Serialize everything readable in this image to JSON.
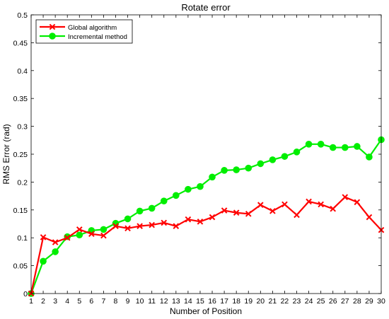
{
  "chart_data": {
    "type": "line",
    "title": "Rotate error",
    "xlabel": "Number of Position",
    "ylabel": "RMS Error (rad)",
    "xlim": [
      1,
      30
    ],
    "ylim": [
      0,
      0.5
    ],
    "x_ticks": [
      1,
      2,
      3,
      4,
      5,
      6,
      7,
      8,
      9,
      10,
      11,
      12,
      13,
      14,
      15,
      16,
      17,
      18,
      19,
      20,
      21,
      22,
      23,
      24,
      25,
      26,
      27,
      28,
      29,
      30
    ],
    "y_ticks": [
      "0",
      "0.05",
      "0.1",
      "0.15",
      "0.2",
      "0.25",
      "0.3",
      "0.35",
      "0.4",
      "0.45",
      "0.5"
    ],
    "grid": false,
    "legend_position": "top-left",
    "x": [
      1,
      2,
      3,
      4,
      5,
      6,
      7,
      8,
      9,
      10,
      11,
      12,
      13,
      14,
      15,
      16,
      17,
      18,
      19,
      20,
      21,
      22,
      23,
      24,
      25,
      26,
      27,
      28,
      29,
      30
    ],
    "series": [
      {
        "name": "Global algorithm",
        "color": "#ff0000",
        "marker": "x",
        "values": [
          0,
          0.101,
          0.092,
          0.1,
          0.115,
          0.107,
          0.104,
          0.121,
          0.117,
          0.121,
          0.123,
          0.127,
          0.121,
          0.133,
          0.129,
          0.137,
          0.149,
          0.145,
          0.143,
          0.159,
          0.148,
          0.16,
          0.141,
          0.165,
          0.16,
          0.152,
          0.173,
          0.164,
          0.137,
          0.114
        ]
      },
      {
        "name": "Incremental method",
        "color": "#00ee00",
        "marker": "circle",
        "values": [
          0,
          0.058,
          0.075,
          0.102,
          0.105,
          0.113,
          0.115,
          0.126,
          0.134,
          0.148,
          0.153,
          0.166,
          0.176,
          0.187,
          0.192,
          0.209,
          0.221,
          0.222,
          0.225,
          0.233,
          0.24,
          0.246,
          0.254,
          0.268,
          0.268,
          0.262,
          0.262,
          0.264,
          0.245,
          0.276
        ]
      }
    ]
  }
}
